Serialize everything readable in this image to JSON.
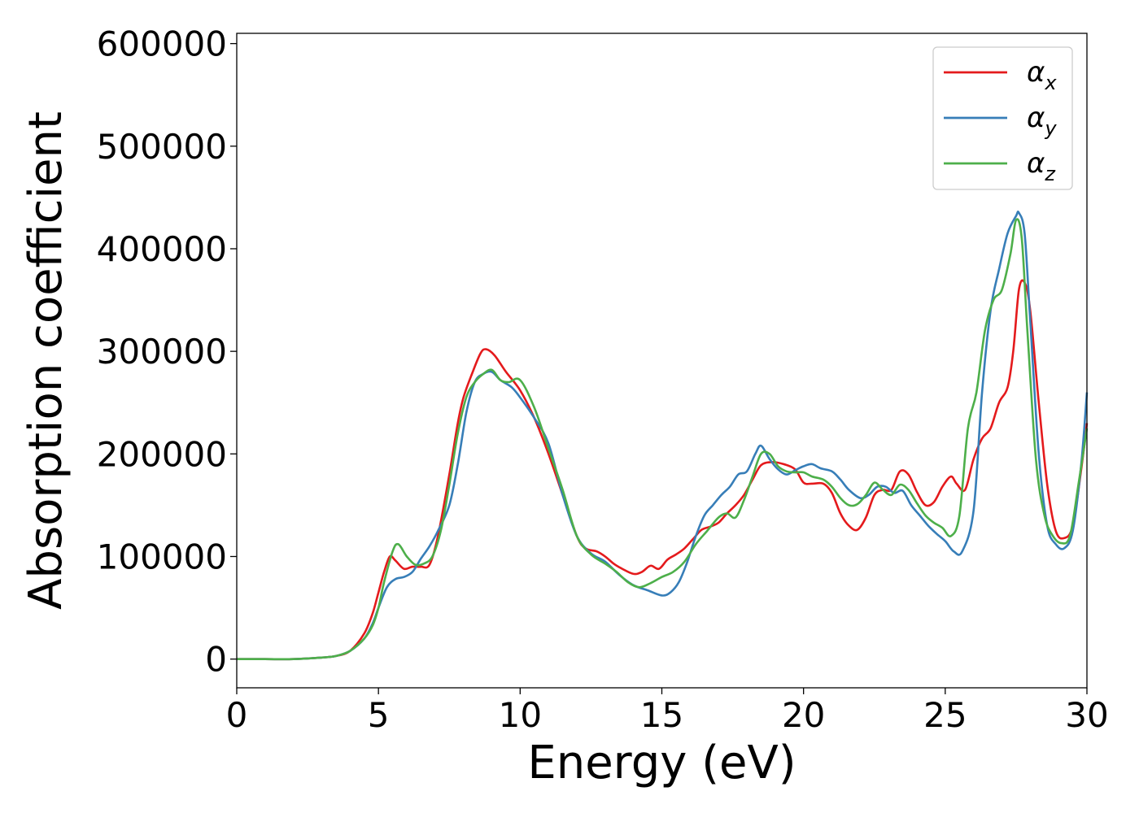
{
  "chart_data": {
    "type": "line",
    "title": "",
    "xlabel": "Energy (eV)",
    "ylabel": "Absorption coefficient",
    "xlim": [
      0,
      30
    ],
    "ylim": [
      -28000,
      610000
    ],
    "xticks": [
      0,
      5,
      10,
      15,
      20,
      25,
      30
    ],
    "yticks": [
      0,
      100000,
      200000,
      300000,
      400000,
      500000,
      600000
    ],
    "grid": false,
    "legend_position": "top-right",
    "series": [
      {
        "name": "α",
        "subscript": "x",
        "color": "#e41a1c",
        "x": [
          0,
          1,
          2,
          3,
          3.5,
          4,
          4.5,
          4.8,
          5.0,
          5.2,
          5.4,
          5.6,
          5.9,
          6.2,
          6.5,
          6.8,
          7.1,
          7.5,
          7.8,
          8.0,
          8.3,
          8.6,
          8.8,
          9.1,
          9.5,
          10.0,
          10.5,
          11.0,
          11.5,
          12.0,
          12.3,
          12.7,
          13.0,
          13.3,
          13.6,
          14.0,
          14.3,
          14.6,
          14.9,
          15.2,
          15.5,
          15.8,
          16.1,
          16.4,
          16.7,
          17.0,
          17.3,
          17.6,
          17.9,
          18.2,
          18.5,
          18.9,
          19.3,
          19.7,
          20.0,
          20.3,
          20.7,
          21.0,
          21.3,
          21.6,
          21.9,
          22.2,
          22.5,
          22.8,
          23.1,
          23.4,
          23.7,
          24.0,
          24.3,
          24.6,
          24.9,
          25.2,
          25.4,
          25.7,
          26.0,
          26.3,
          26.6,
          26.9,
          27.2,
          27.4,
          27.6,
          27.8,
          28.0,
          28.3,
          28.6,
          28.9,
          29.2,
          29.5,
          29.8,
          30.0
        ],
        "values": [
          0,
          0,
          0,
          1500,
          3000,
          8000,
          25000,
          45000,
          65000,
          85000,
          100000,
          96000,
          88000,
          90000,
          90000,
          92000,
          120000,
          180000,
          230000,
          255000,
          278000,
          298000,
          302000,
          296000,
          280000,
          262000,
          235000,
          200000,
          160000,
          120000,
          108000,
          105000,
          100000,
          93000,
          88000,
          83000,
          85000,
          91000,
          88000,
          97000,
          102000,
          108000,
          117000,
          126000,
          129000,
          133000,
          142000,
          150000,
          160000,
          175000,
          189000,
          192000,
          190000,
          185000,
          172000,
          171000,
          171000,
          162000,
          142000,
          130000,
          126000,
          138000,
          160000,
          165000,
          165000,
          183000,
          180000,
          163000,
          150000,
          153000,
          168000,
          178000,
          171000,
          165000,
          195000,
          215000,
          225000,
          250000,
          265000,
          300000,
          360000,
          367000,
          340000,
          250000,
          170000,
          125000,
          118000,
          130000,
          185000,
          230000
        ]
      },
      {
        "name": "α",
        "subscript": "y",
        "color": "#377eb8",
        "x": [
          0,
          1,
          2,
          3,
          3.5,
          4,
          4.5,
          4.8,
          5.0,
          5.3,
          5.6,
          5.9,
          6.2,
          6.5,
          6.8,
          7.1,
          7.5,
          7.8,
          8.1,
          8.4,
          8.7,
          9.0,
          9.3,
          9.7,
          10.0,
          10.5,
          11.0,
          11.5,
          12.0,
          12.5,
          13.0,
          13.5,
          14.0,
          14.5,
          15.0,
          15.3,
          15.6,
          15.9,
          16.2,
          16.5,
          16.8,
          17.1,
          17.4,
          17.7,
          18.0,
          18.3,
          18.5,
          18.8,
          19.1,
          19.4,
          19.7,
          20.0,
          20.3,
          20.6,
          21.0,
          21.3,
          21.6,
          22.0,
          22.3,
          22.6,
          22.9,
          23.2,
          23.5,
          23.8,
          24.1,
          24.4,
          24.7,
          25.0,
          25.3,
          25.6,
          26.0,
          26.3,
          26.6,
          26.9,
          27.2,
          27.5,
          27.6,
          27.8,
          28.0,
          28.3,
          28.6,
          28.9,
          29.2,
          29.5,
          29.8,
          30.0
        ],
        "values": [
          0,
          0,
          0,
          1500,
          3000,
          8000,
          20000,
          35000,
          50000,
          70000,
          78000,
          80000,
          85000,
          98000,
          110000,
          125000,
          150000,
          190000,
          240000,
          270000,
          278000,
          280000,
          272000,
          265000,
          255000,
          235000,
          210000,
          160000,
          120000,
          103000,
          95000,
          82000,
          72000,
          67000,
          62000,
          65000,
          75000,
          95000,
          120000,
          140000,
          150000,
          160000,
          168000,
          180000,
          183000,
          200000,
          208000,
          195000,
          185000,
          180000,
          184000,
          188000,
          190000,
          186000,
          183000,
          175000,
          165000,
          157000,
          160000,
          168000,
          168000,
          162000,
          164000,
          150000,
          140000,
          130000,
          122000,
          115000,
          105000,
          105000,
          145000,
          260000,
          340000,
          380000,
          415000,
          432000,
          435000,
          415000,
          330000,
          200000,
          130000,
          112000,
          108000,
          125000,
          190000,
          260000
        ]
      },
      {
        "name": "α",
        "subscript": "z",
        "color": "#4daf4a",
        "x": [
          0,
          1,
          2,
          3,
          3.5,
          4,
          4.5,
          4.8,
          5.0,
          5.2,
          5.5,
          5.7,
          6.0,
          6.3,
          6.6,
          6.9,
          7.2,
          7.5,
          7.8,
          8.1,
          8.4,
          8.7,
          9.0,
          9.3,
          9.6,
          10.0,
          10.5,
          11.0,
          11.5,
          12.0,
          12.5,
          13.0,
          13.4,
          13.8,
          14.2,
          14.6,
          15.0,
          15.4,
          15.8,
          16.2,
          16.6,
          17.0,
          17.3,
          17.6,
          17.9,
          18.2,
          18.5,
          18.8,
          19.1,
          19.4,
          19.7,
          20.0,
          20.3,
          20.7,
          21.0,
          21.3,
          21.6,
          21.9,
          22.2,
          22.5,
          22.8,
          23.1,
          23.4,
          23.7,
          24.0,
          24.3,
          24.6,
          24.9,
          25.2,
          25.5,
          25.8,
          26.1,
          26.4,
          26.7,
          27.0,
          27.3,
          27.5,
          27.7,
          27.9,
          28.2,
          28.5,
          28.8,
          29.1,
          29.4,
          29.7,
          30.0
        ],
        "values": [
          0,
          0,
          0,
          1500,
          3000,
          8000,
          20000,
          33000,
          50000,
          75000,
          105000,
          112000,
          100000,
          92000,
          93000,
          100000,
          125000,
          170000,
          220000,
          255000,
          270000,
          278000,
          282000,
          272000,
          270000,
          272000,
          245000,
          205000,
          165000,
          120000,
          102000,
          93000,
          85000,
          75000,
          70000,
          74000,
          80000,
          85000,
          95000,
          112000,
          125000,
          138000,
          142000,
          138000,
          155000,
          178000,
          200000,
          200000,
          188000,
          183000,
          182000,
          182000,
          178000,
          175000,
          168000,
          157000,
          150000,
          151000,
          160000,
          172000,
          165000,
          160000,
          170000,
          165000,
          152000,
          140000,
          133000,
          128000,
          120000,
          140000,
          225000,
          260000,
          320000,
          350000,
          360000,
          395000,
          428000,
          410000,
          320000,
          195000,
          140000,
          120000,
          113000,
          120000,
          170000,
          225000
        ]
      }
    ]
  }
}
